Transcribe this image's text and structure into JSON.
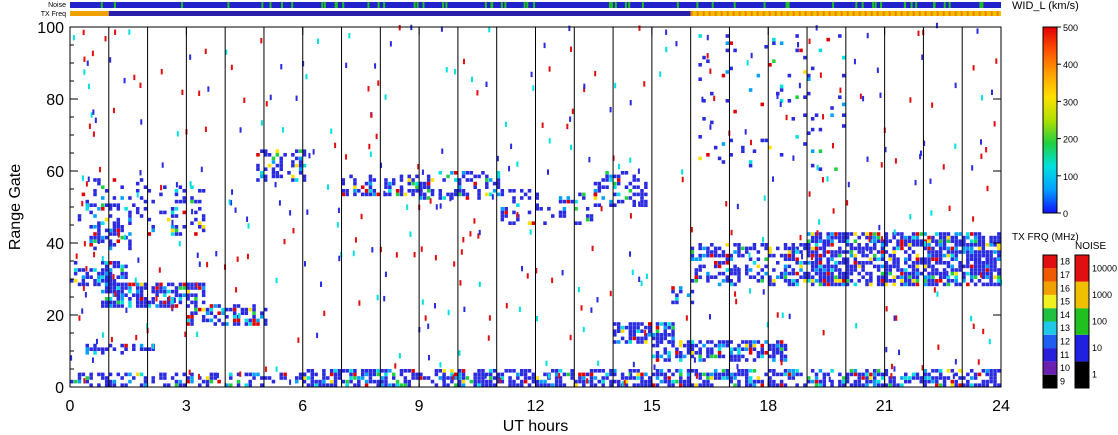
{
  "chart_data": {
    "type": "heatmap",
    "xlabel": "UT hours",
    "ylabel": "Range Gate",
    "xlim": [
      0,
      24
    ],
    "ylim": [
      0,
      100
    ],
    "xticks": [
      "0",
      "3",
      "6",
      "9",
      "12",
      "15",
      "18",
      "21",
      "24"
    ],
    "yticks": [
      "0",
      "20",
      "40",
      "60",
      "80",
      "100"
    ],
    "top_bars": {
      "noise_label": "Noise",
      "txfreq_label": "TX Freq"
    },
    "colorbar_width": {
      "title": "WID_L (km/s)",
      "ticks": [
        "0",
        "100",
        "200",
        "300",
        "400",
        "500"
      ],
      "range": [
        0,
        500
      ]
    },
    "colorbar_txfreq": {
      "title": "TX FRQ (MHz)",
      "ticks": [
        "9",
        "10",
        "11",
        "12",
        "13",
        "14",
        "15",
        "16",
        "17",
        "18"
      ],
      "colors": [
        "#000000",
        "#6a1fb0",
        "#2a1fd8",
        "#1e5ef0",
        "#20c8e8",
        "#20c040",
        "#f0f020",
        "#f0a000",
        "#f05a00",
        "#e01010"
      ]
    },
    "colorbar_noise": {
      "title": "NOISE",
      "ticks": [
        "1",
        "10",
        "100",
        "1000",
        "10000"
      ],
      "colors": [
        "#000000",
        "#2020e0",
        "#20c020",
        "#f0c000",
        "#e01010"
      ]
    },
    "colors": {
      "dominant_scatter": "#2a2ae0",
      "width_scale": [
        "#1010ff",
        "#00a0ff",
        "#00e0e0",
        "#20d040",
        "#b0e000",
        "#ffe000",
        "#ffa000",
        "#ff5000",
        "#e00000"
      ]
    },
    "scan_boundaries_ut": [
      1,
      2,
      3,
      4,
      5,
      6,
      7,
      8,
      9,
      10,
      11,
      12,
      13,
      14,
      15,
      16,
      17,
      18,
      19,
      20,
      21,
      22,
      23
    ],
    "echo_regions": [
      {
        "x0": 0.0,
        "x1": 6.0,
        "y0": 0,
        "y1": 4,
        "density": 0.45
      },
      {
        "x0": 6.0,
        "x1": 24.0,
        "y0": 0,
        "y1": 5,
        "density": 0.6
      },
      {
        "x0": 0.0,
        "x1": 1.5,
        "y0": 28,
        "y1": 35,
        "density": 0.55
      },
      {
        "x0": 0.8,
        "x1": 3.5,
        "y0": 22,
        "y1": 29,
        "density": 0.7
      },
      {
        "x0": 3.0,
        "x1": 5.0,
        "y0": 17,
        "y1": 23,
        "density": 0.55
      },
      {
        "x0": 0.5,
        "x1": 1.6,
        "y0": 38,
        "y1": 46,
        "density": 0.55
      },
      {
        "x0": 0.2,
        "x1": 2.0,
        "y0": 46,
        "y1": 58,
        "density": 0.25
      },
      {
        "x0": 0.4,
        "x1": 2.2,
        "y0": 9,
        "y1": 12,
        "density": 0.5
      },
      {
        "x0": 2.0,
        "x1": 3.5,
        "y0": 42,
        "y1": 56,
        "density": 0.2
      },
      {
        "x0": 4.8,
        "x1": 6.0,
        "y0": 57,
        "y1": 66,
        "density": 0.45
      },
      {
        "x0": 7.0,
        "x1": 9.3,
        "y0": 53,
        "y1": 59,
        "density": 0.5
      },
      {
        "x0": 9.0,
        "x1": 11.0,
        "y0": 52,
        "y1": 60,
        "density": 0.35
      },
      {
        "x0": 11.0,
        "x1": 13.5,
        "y0": 45,
        "y1": 55,
        "density": 0.2
      },
      {
        "x0": 13.5,
        "x1": 14.8,
        "y0": 50,
        "y1": 60,
        "density": 0.35
      },
      {
        "x0": 14.0,
        "x1": 15.5,
        "y0": 12,
        "y1": 18,
        "density": 0.65
      },
      {
        "x0": 15.0,
        "x1": 18.5,
        "y0": 7,
        "y1": 13,
        "density": 0.6
      },
      {
        "x0": 15.5,
        "x1": 16.0,
        "y0": 22,
        "y1": 28,
        "density": 0.4
      },
      {
        "x0": 16.0,
        "x1": 19.0,
        "y0": 28,
        "y1": 40,
        "density": 0.45
      },
      {
        "x0": 19.0,
        "x1": 24.0,
        "y0": 28,
        "y1": 43,
        "density": 0.7
      },
      {
        "x0": 16.2,
        "x1": 20.0,
        "y0": 60,
        "y1": 98,
        "density": 0.06
      }
    ]
  }
}
